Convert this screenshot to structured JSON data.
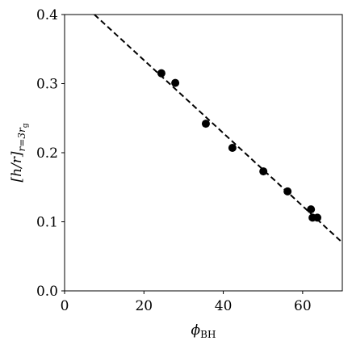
{
  "chart_data": {
    "type": "scatter",
    "xlabel": {
      "symbol": "ϕ",
      "subscript": "BH"
    },
    "ylabel": {
      "main": "[h/r]",
      "subscript": "r=3r",
      "subsubscript": "g"
    },
    "series": [
      {
        "color": "#000000",
        "x": [
          24.4,
          27.9,
          35.6,
          42.3,
          50.1,
          56.2,
          62.1,
          62.5,
          63.7
        ],
        "values": [
          0.315,
          0.301,
          0.242,
          0.207,
          0.173,
          0.144,
          0.118,
          0.106,
          0.106
        ]
      }
    ],
    "fit": {
      "color": "#000000",
      "dashed": true,
      "x": [
        7.5,
        70
      ],
      "values": [
        0.4,
        0.07
      ]
    },
    "xlim": [
      0,
      70
    ],
    "xticks": [
      0,
      20,
      40,
      60
    ],
    "ylim": [
      0,
      0.4
    ],
    "yticks": [
      {
        "value": 0,
        "label": "0.0"
      },
      0.1,
      0.2,
      0.3,
      0.4
    ]
  }
}
